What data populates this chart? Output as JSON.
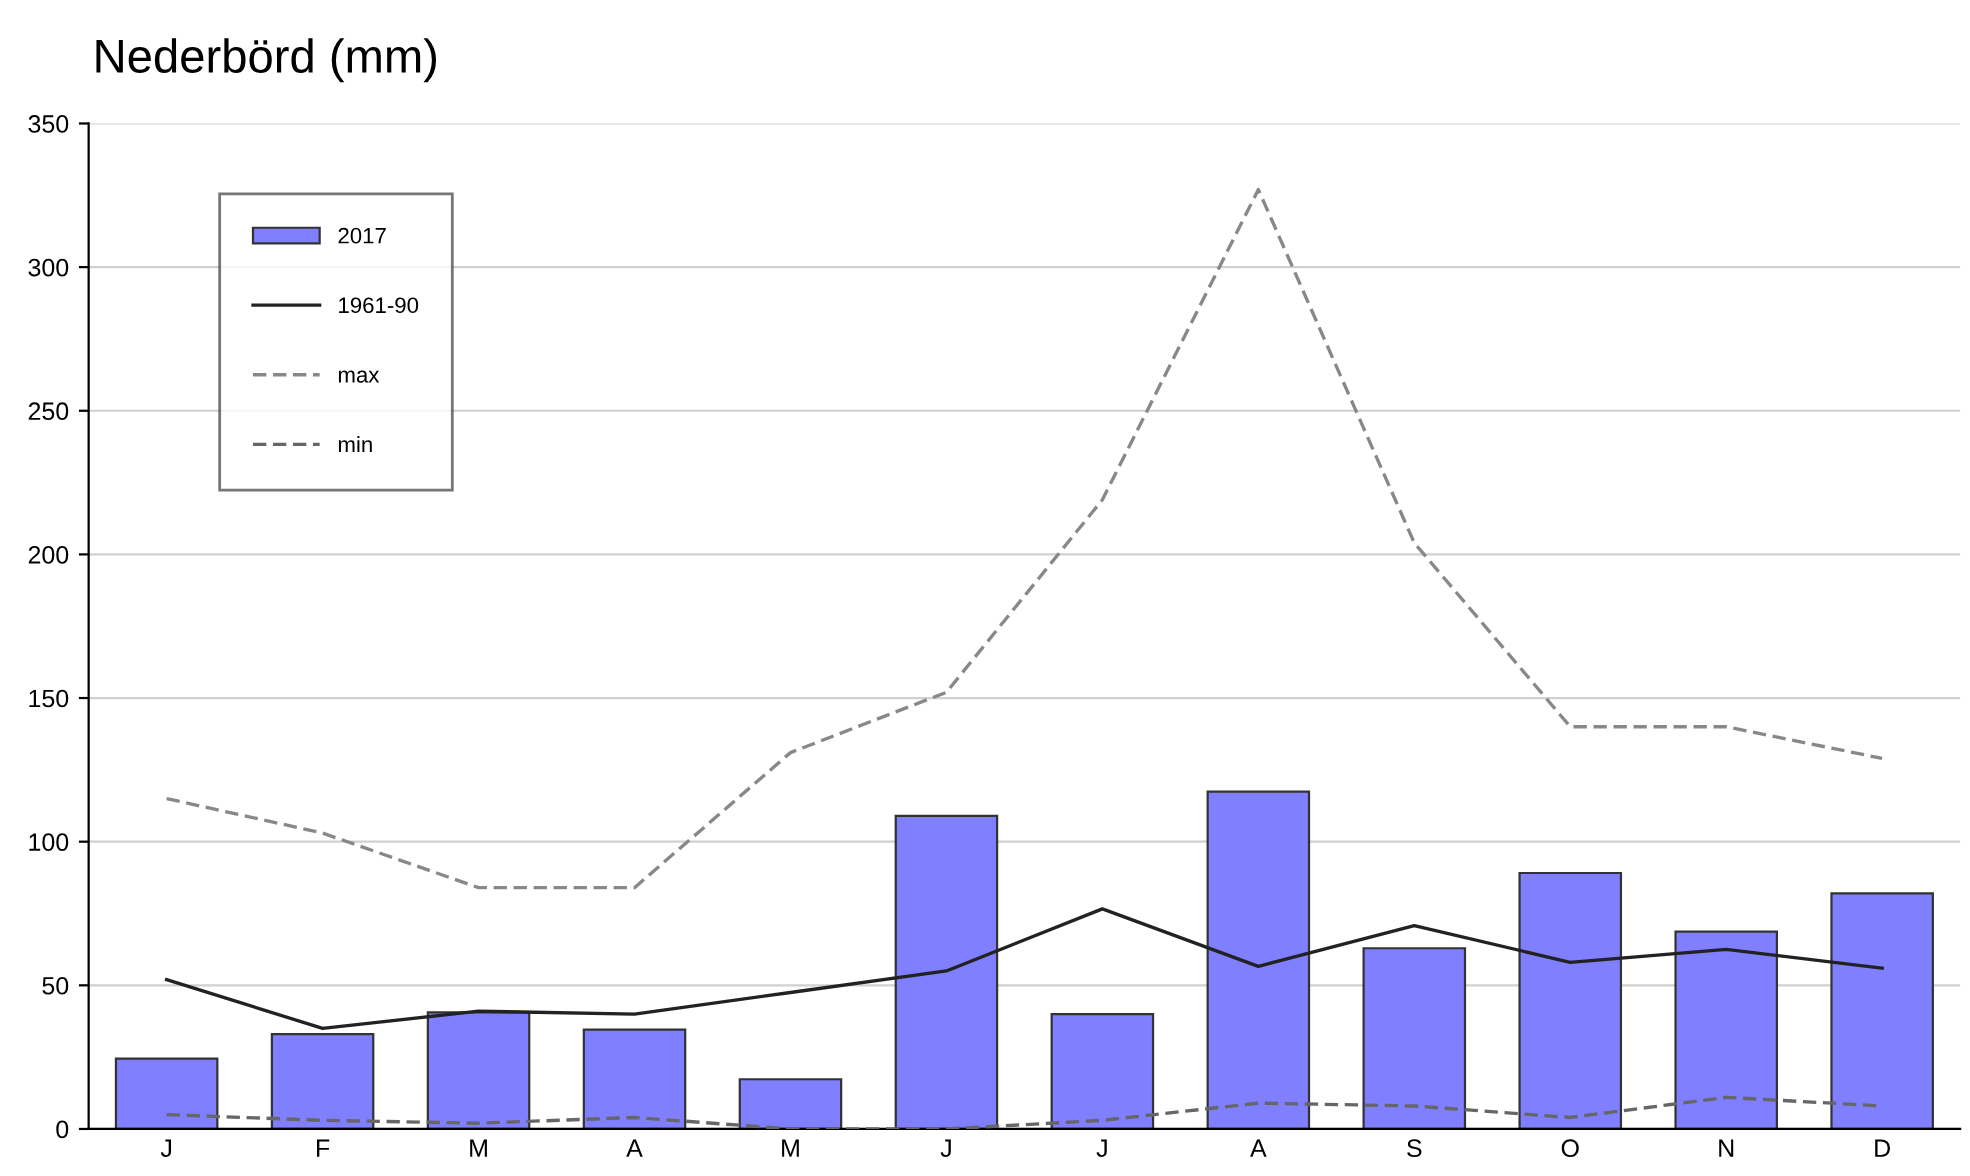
{
  "chart_data": {
    "type": "bar",
    "title": "Nederbörd (mm)",
    "categories": [
      "J",
      "F",
      "M",
      "A",
      "M",
      "J",
      "J",
      "A",
      "S",
      "O",
      "N",
      "D"
    ],
    "series": [
      {
        "name": "2017",
        "color": "#7f7fff",
        "values": [
          24.5,
          33,
          40.6,
          34.6,
          17.3,
          109,
          40,
          117.4,
          62.9,
          89.1,
          68.7,
          82
        ]
      },
      {
        "name": "1961-90",
        "type": "line",
        "color": "#222222",
        "line_style": "solid",
        "values": [
          52,
          35,
          41,
          40,
          47.5,
          55,
          76.6,
          56.6,
          70.8,
          58,
          62.5,
          56
        ]
      },
      {
        "name": "max",
        "type": "line",
        "color": "#888888",
        "line_style": "dashed",
        "values": [
          115,
          103,
          84,
          84,
          131,
          152,
          219,
          327,
          204,
          140,
          140,
          129
        ]
      },
      {
        "name": "min",
        "type": "line",
        "color": "#666666",
        "line_style": "dashed",
        "values": [
          5,
          3,
          2,
          4,
          0,
          0,
          3,
          9,
          8,
          4,
          11,
          8
        ]
      }
    ],
    "ylim": [
      0,
      350
    ],
    "yticks": [
      0,
      50,
      100,
      150,
      200,
      250,
      300,
      350
    ],
    "grid": "y",
    "legend": "top left"
  }
}
